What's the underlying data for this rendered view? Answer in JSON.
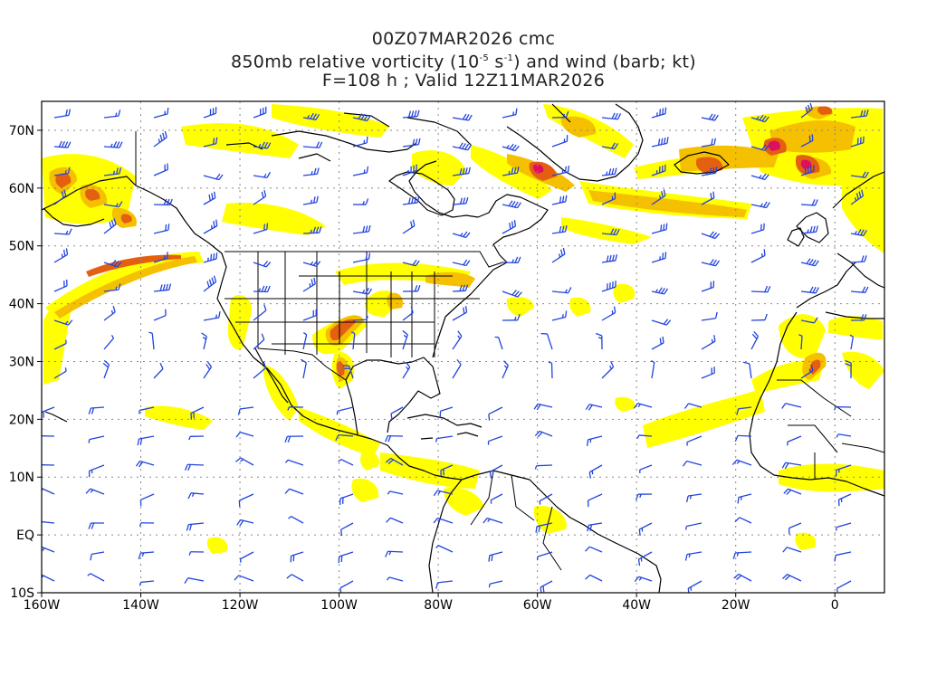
{
  "title": {
    "line1": "00Z07MAR2026 cmc",
    "line2_pre": "850mb relative vorticity (10",
    "line2_exp1": "-5",
    "line2_mid": " s",
    "line2_exp2": "-1",
    "line2_post": ") and wind (barb; kt)",
    "line3": "F=108 h ; Valid 12Z11MAR2026"
  },
  "map": {
    "lon_range": [
      -160,
      10
    ],
    "lat_range": [
      -10,
      75
    ],
    "lat_ticks": [
      {
        "value": 70,
        "label": "70N"
      },
      {
        "value": 60,
        "label": "60N"
      },
      {
        "value": 50,
        "label": "50N"
      },
      {
        "value": 40,
        "label": "40N"
      },
      {
        "value": 30,
        "label": "30N"
      },
      {
        "value": 20,
        "label": "20N"
      },
      {
        "value": 10,
        "label": "10N"
      },
      {
        "value": 0,
        "label": "EQ"
      },
      {
        "value": -10,
        "label": "10S"
      }
    ],
    "lon_ticks": [
      {
        "value": -160,
        "label": "160W"
      },
      {
        "value": -140,
        "label": "140W"
      },
      {
        "value": -120,
        "label": "120W"
      },
      {
        "value": -100,
        "label": "100W"
      },
      {
        "value": -80,
        "label": "80W"
      },
      {
        "value": -60,
        "label": "60W"
      },
      {
        "value": -40,
        "label": "40W"
      },
      {
        "value": -20,
        "label": "20W"
      },
      {
        "value": 0,
        "label": "0"
      }
    ],
    "grid": true,
    "colors": {
      "low": "#ffff00",
      "mid": "#f5c000",
      "high": "#e46010",
      "max": "#dd1060",
      "barb": "#2244dd",
      "coast": "#000000",
      "grid": "#888888"
    }
  }
}
